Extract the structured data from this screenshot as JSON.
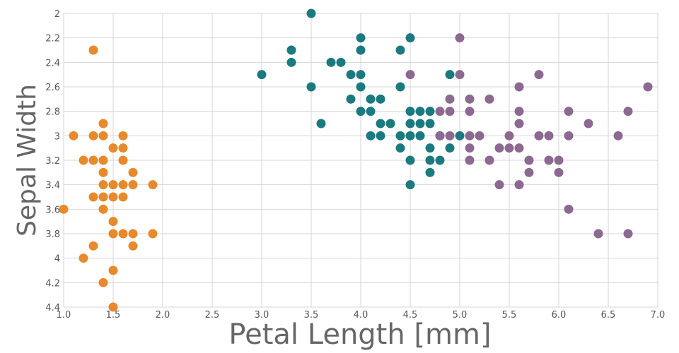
{
  "chart_data": {
    "type": "scatter",
    "xlabel": "Petal Length [mm]",
    "ylabel": "Sepal Width",
    "xlim": [
      1.0,
      7.0
    ],
    "ylim": [
      2.0,
      4.4
    ],
    "y_inverted": true,
    "x_ticks": [
      "1.0",
      "1.5",
      "2.0",
      "2.5",
      "3.0",
      "3.5",
      "4.0",
      "4.5",
      "5.0",
      "5.5",
      "6.0",
      "6.5",
      "7.0"
    ],
    "y_ticks": [
      "2",
      "2.2",
      "2.4",
      "2.6",
      "2.8",
      "3",
      "3.2",
      "3.4",
      "3.6",
      "3.8",
      "4",
      "4.2",
      "4.4"
    ],
    "grid": true,
    "series": [
      {
        "color": "#e8892b",
        "points": [
          [
            1.3,
            2.3
          ],
          [
            1.4,
            2.9
          ],
          [
            1.1,
            3.0
          ],
          [
            1.3,
            3.0
          ],
          [
            1.4,
            3.0
          ],
          [
            1.6,
            3.0
          ],
          [
            1.5,
            3.1
          ],
          [
            1.6,
            3.1
          ],
          [
            1.2,
            3.2
          ],
          [
            1.3,
            3.2
          ],
          [
            1.4,
            3.2
          ],
          [
            1.6,
            3.2
          ],
          [
            1.4,
            3.3
          ],
          [
            1.7,
            3.3
          ],
          [
            1.4,
            3.4
          ],
          [
            1.5,
            3.4
          ],
          [
            1.6,
            3.4
          ],
          [
            1.7,
            3.4
          ],
          [
            1.9,
            3.4
          ],
          [
            1.3,
            3.5
          ],
          [
            1.4,
            3.5
          ],
          [
            1.5,
            3.5
          ],
          [
            1.6,
            3.5
          ],
          [
            1.0,
            3.6
          ],
          [
            1.4,
            3.6
          ],
          [
            1.5,
            3.7
          ],
          [
            1.5,
            3.8
          ],
          [
            1.6,
            3.8
          ],
          [
            1.7,
            3.8
          ],
          [
            1.9,
            3.8
          ],
          [
            1.3,
            3.9
          ],
          [
            1.7,
            3.9
          ],
          [
            1.2,
            4.0
          ],
          [
            1.5,
            4.1
          ],
          [
            1.4,
            4.2
          ],
          [
            1.5,
            4.4
          ]
        ]
      },
      {
        "color": "#1a7a80",
        "points": [
          [
            3.5,
            2.0
          ],
          [
            4.0,
            2.2
          ],
          [
            4.5,
            2.2
          ],
          [
            3.3,
            2.3
          ],
          [
            4.0,
            2.3
          ],
          [
            4.4,
            2.3
          ],
          [
            3.3,
            2.4
          ],
          [
            3.7,
            2.4
          ],
          [
            3.8,
            2.4
          ],
          [
            3.0,
            2.5
          ],
          [
            3.9,
            2.5
          ],
          [
            4.0,
            2.5
          ],
          [
            4.9,
            2.5
          ],
          [
            3.5,
            2.6
          ],
          [
            4.0,
            2.6
          ],
          [
            4.4,
            2.6
          ],
          [
            3.9,
            2.7
          ],
          [
            4.1,
            2.7
          ],
          [
            4.2,
            2.7
          ],
          [
            4.0,
            2.8
          ],
          [
            4.1,
            2.8
          ],
          [
            4.5,
            2.8
          ],
          [
            4.6,
            2.8
          ],
          [
            4.7,
            2.8
          ],
          [
            3.6,
            2.9
          ],
          [
            4.2,
            2.9
          ],
          [
            4.3,
            2.9
          ],
          [
            4.5,
            2.9
          ],
          [
            4.6,
            2.9
          ],
          [
            4.7,
            2.9
          ],
          [
            4.1,
            3.0
          ],
          [
            4.2,
            3.0
          ],
          [
            4.4,
            3.0
          ],
          [
            4.5,
            3.0
          ],
          [
            4.6,
            3.0
          ],
          [
            4.8,
            3.0
          ],
          [
            5.0,
            3.0
          ],
          [
            4.4,
            3.1
          ],
          [
            4.7,
            3.1
          ],
          [
            4.9,
            3.1
          ],
          [
            4.5,
            3.2
          ],
          [
            4.7,
            3.2
          ],
          [
            4.8,
            3.2
          ],
          [
            4.7,
            3.3
          ],
          [
            4.5,
            3.4
          ]
        ]
      },
      {
        "color": "#8c6991",
        "points": [
          [
            5.0,
            2.2
          ],
          [
            4.5,
            2.5
          ],
          [
            5.0,
            2.5
          ],
          [
            5.8,
            2.5
          ],
          [
            6.9,
            2.6
          ],
          [
            5.6,
            2.6
          ],
          [
            4.9,
            2.7
          ],
          [
            5.1,
            2.7
          ],
          [
            5.3,
            2.7
          ],
          [
            4.8,
            2.8
          ],
          [
            4.9,
            2.8
          ],
          [
            5.1,
            2.8
          ],
          [
            5.6,
            2.8
          ],
          [
            6.1,
            2.8
          ],
          [
            6.7,
            2.8
          ],
          [
            5.6,
            2.9
          ],
          [
            6.3,
            2.9
          ],
          [
            4.8,
            3.0
          ],
          [
            4.9,
            3.0
          ],
          [
            5.1,
            3.0
          ],
          [
            5.2,
            3.0
          ],
          [
            5.5,
            3.0
          ],
          [
            5.8,
            3.0
          ],
          [
            5.9,
            3.0
          ],
          [
            6.1,
            3.0
          ],
          [
            6.6,
            3.0
          ],
          [
            5.1,
            3.1
          ],
          [
            5.4,
            3.1
          ],
          [
            5.5,
            3.1
          ],
          [
            5.6,
            3.1
          ],
          [
            5.1,
            3.2
          ],
          [
            5.3,
            3.2
          ],
          [
            5.7,
            3.2
          ],
          [
            5.9,
            3.2
          ],
          [
            6.0,
            3.2
          ],
          [
            5.7,
            3.3
          ],
          [
            6.0,
            3.3
          ],
          [
            5.4,
            3.4
          ],
          [
            5.6,
            3.4
          ],
          [
            6.1,
            3.6
          ],
          [
            6.4,
            3.8
          ],
          [
            6.7,
            3.8
          ]
        ]
      }
    ]
  }
}
